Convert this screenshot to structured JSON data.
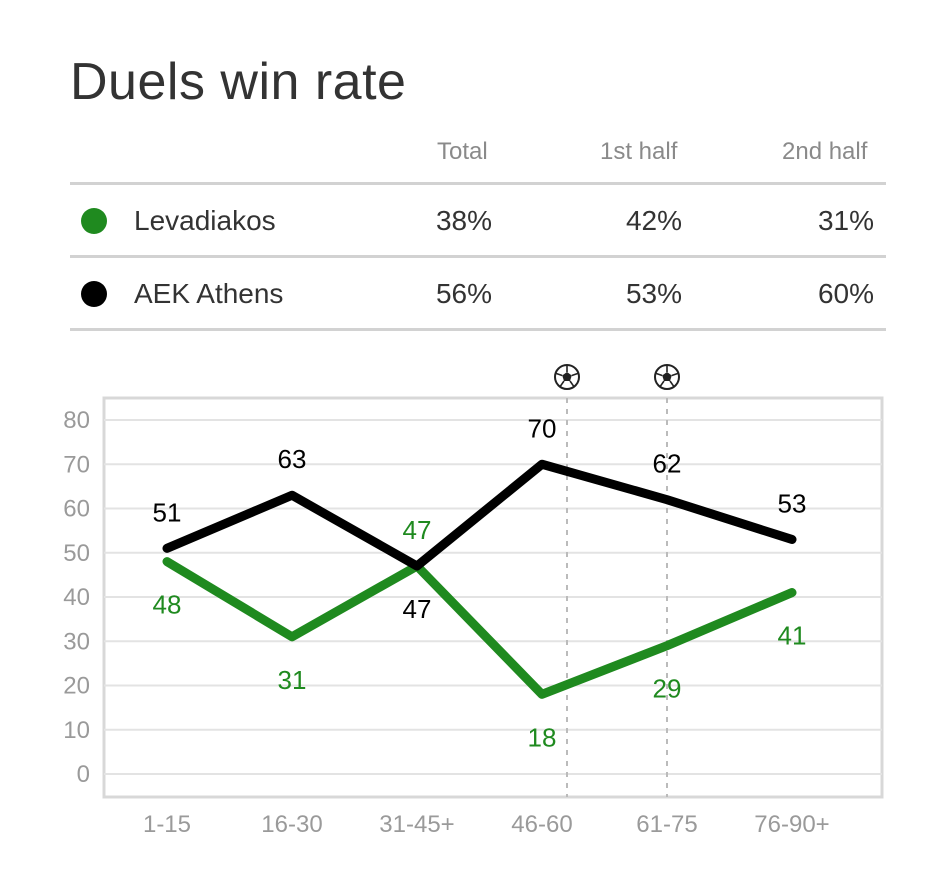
{
  "title": "Duels win rate",
  "columns": [
    "Total",
    "1st half",
    "2nd half"
  ],
  "teams": [
    {
      "name": "Levadiakos",
      "color": "#1f8a1f",
      "total": "38%",
      "first_half": "42%",
      "second_half": "31%"
    },
    {
      "name": "AEK Athens",
      "color": "#000000",
      "total": "56%",
      "first_half": "53%",
      "second_half": "60%"
    }
  ],
  "chart_data": {
    "type": "line",
    "categories": [
      "1-15",
      "16-30",
      "31-45+",
      "46-60",
      "61-75",
      "76-90+"
    ],
    "y_ticks": [
      0,
      10,
      20,
      30,
      40,
      50,
      60,
      70,
      80
    ],
    "ylim": [
      0,
      80
    ],
    "grid": true,
    "series": [
      {
        "name": "AEK Athens",
        "color": "#000000",
        "values": [
          51,
          63,
          47,
          70,
          62,
          53
        ]
      },
      {
        "name": "Levadiakos",
        "color": "#1f8a1f",
        "values": [
          48,
          31,
          47,
          18,
          29,
          41
        ]
      }
    ],
    "goal_markers": [
      {
        "x": "46-60",
        "offset": 0.2,
        "icon": "soccer-ball-icon"
      },
      {
        "x": "61-75",
        "offset": 0.0,
        "icon": "soccer-ball-icon"
      }
    ]
  }
}
